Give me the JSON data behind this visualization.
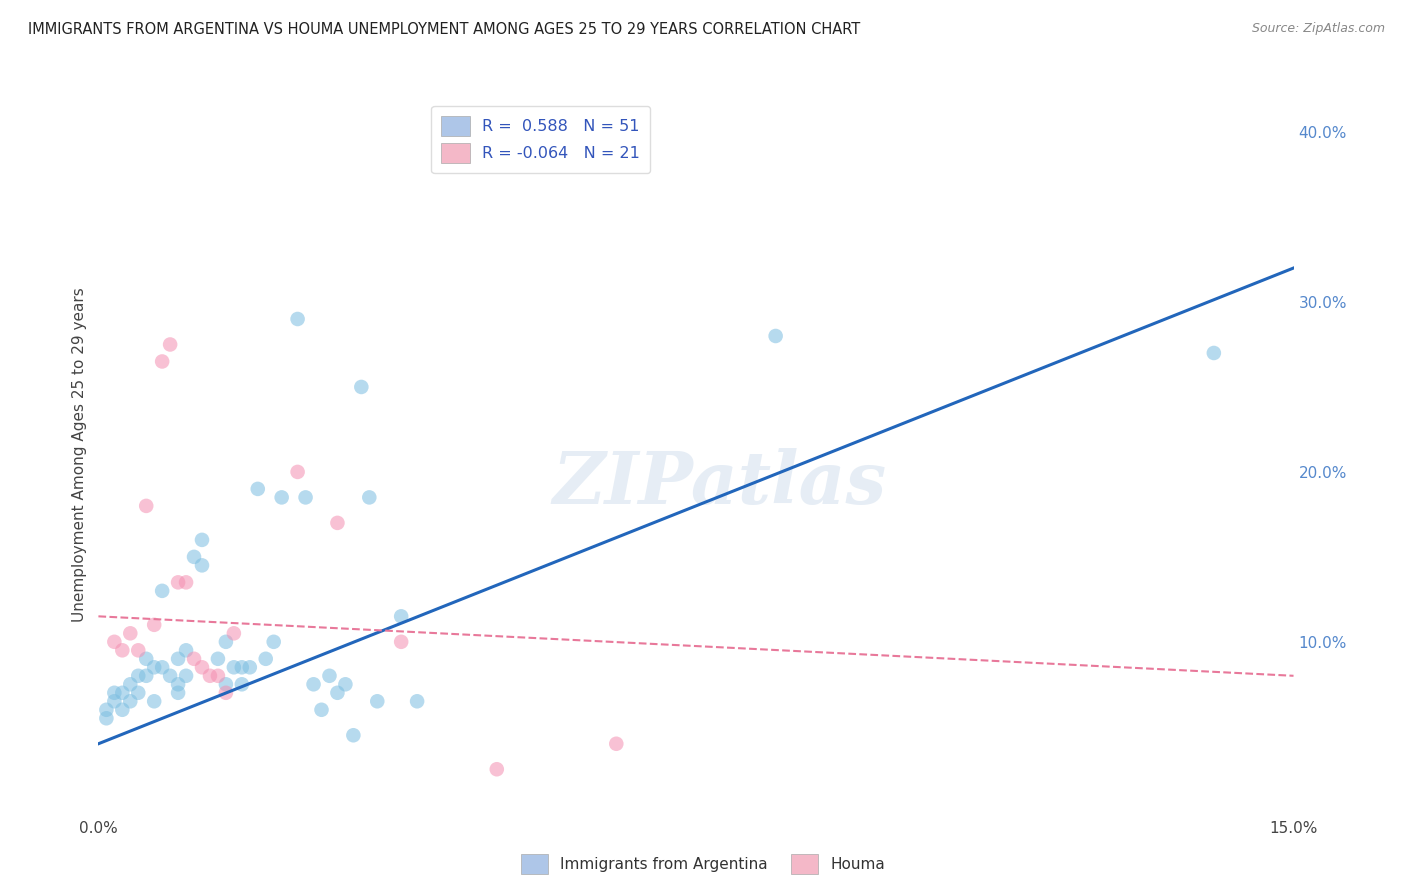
{
  "title": "IMMIGRANTS FROM ARGENTINA VS HOUMA UNEMPLOYMENT AMONG AGES 25 TO 29 YEARS CORRELATION CHART",
  "source": "Source: ZipAtlas.com",
  "ylabel": "Unemployment Among Ages 25 to 29 years",
  "xlim": [
    0.0,
    0.15
  ],
  "ylim": [
    0.0,
    0.42
  ],
  "x_ticks": [
    0.0,
    0.025,
    0.05,
    0.075,
    0.1,
    0.125,
    0.15
  ],
  "x_tick_labels": [
    "0.0%",
    "",
    "",
    "",
    "",
    "",
    "15.0%"
  ],
  "y_ticks_right": [
    0.0,
    0.1,
    0.2,
    0.3,
    0.4
  ],
  "y_tick_labels_right": [
    "",
    "10.0%",
    "20.0%",
    "30.0%",
    "40.0%"
  ],
  "legend_entries": [
    {
      "label_r": "R =  0.588",
      "label_n": "N = 51",
      "color": "#aec6e8"
    },
    {
      "label_r": "R = -0.064",
      "label_n": "N = 21",
      "color": "#f4b8c8"
    }
  ],
  "blue_scatter": [
    [
      0.001,
      0.055
    ],
    [
      0.001,
      0.06
    ],
    [
      0.002,
      0.065
    ],
    [
      0.002,
      0.07
    ],
    [
      0.003,
      0.06
    ],
    [
      0.003,
      0.07
    ],
    [
      0.004,
      0.065
    ],
    [
      0.004,
      0.075
    ],
    [
      0.005,
      0.07
    ],
    [
      0.005,
      0.08
    ],
    [
      0.006,
      0.08
    ],
    [
      0.006,
      0.09
    ],
    [
      0.007,
      0.085
    ],
    [
      0.007,
      0.065
    ],
    [
      0.008,
      0.13
    ],
    [
      0.008,
      0.085
    ],
    [
      0.009,
      0.08
    ],
    [
      0.01,
      0.075
    ],
    [
      0.01,
      0.09
    ],
    [
      0.01,
      0.07
    ],
    [
      0.011,
      0.08
    ],
    [
      0.011,
      0.095
    ],
    [
      0.012,
      0.15
    ],
    [
      0.013,
      0.16
    ],
    [
      0.013,
      0.145
    ],
    [
      0.015,
      0.09
    ],
    [
      0.016,
      0.075
    ],
    [
      0.016,
      0.1
    ],
    [
      0.017,
      0.085
    ],
    [
      0.018,
      0.075
    ],
    [
      0.018,
      0.085
    ],
    [
      0.019,
      0.085
    ],
    [
      0.02,
      0.19
    ],
    [
      0.021,
      0.09
    ],
    [
      0.022,
      0.1
    ],
    [
      0.023,
      0.185
    ],
    [
      0.025,
      0.29
    ],
    [
      0.026,
      0.185
    ],
    [
      0.027,
      0.075
    ],
    [
      0.028,
      0.06
    ],
    [
      0.029,
      0.08
    ],
    [
      0.03,
      0.07
    ],
    [
      0.031,
      0.075
    ],
    [
      0.032,
      0.045
    ],
    [
      0.033,
      0.25
    ],
    [
      0.034,
      0.185
    ],
    [
      0.035,
      0.065
    ],
    [
      0.038,
      0.115
    ],
    [
      0.04,
      0.065
    ],
    [
      0.085,
      0.28
    ],
    [
      0.14,
      0.27
    ]
  ],
  "pink_scatter": [
    [
      0.002,
      0.1
    ],
    [
      0.003,
      0.095
    ],
    [
      0.004,
      0.105
    ],
    [
      0.005,
      0.095
    ],
    [
      0.006,
      0.18
    ],
    [
      0.007,
      0.11
    ],
    [
      0.008,
      0.265
    ],
    [
      0.009,
      0.275
    ],
    [
      0.01,
      0.135
    ],
    [
      0.011,
      0.135
    ],
    [
      0.012,
      0.09
    ],
    [
      0.013,
      0.085
    ],
    [
      0.014,
      0.08
    ],
    [
      0.015,
      0.08
    ],
    [
      0.016,
      0.07
    ],
    [
      0.017,
      0.105
    ],
    [
      0.025,
      0.2
    ],
    [
      0.03,
      0.17
    ],
    [
      0.038,
      0.1
    ],
    [
      0.05,
      0.025
    ],
    [
      0.065,
      0.04
    ]
  ],
  "blue_line_x": [
    0.0,
    0.15
  ],
  "blue_line_y": [
    0.04,
    0.32
  ],
  "pink_line_x": [
    0.0,
    0.15
  ],
  "pink_line_y": [
    0.115,
    0.08
  ],
  "scatter_size": 110,
  "scatter_alpha": 0.55,
  "scatter_color_blue": "#7bbde0",
  "scatter_color_pink": "#f48fb1",
  "line_color_blue": "#2266bb",
  "line_color_pink": "#e8789a",
  "watermark": "ZIPatlas",
  "background_color": "#ffffff",
  "grid_color": "#bbbbbb",
  "legend_box_color_blue": "#aec6e8",
  "legend_box_color_pink": "#f4b8c8",
  "legend_text_color": "#3355bb",
  "right_axis_color": "#5588cc"
}
